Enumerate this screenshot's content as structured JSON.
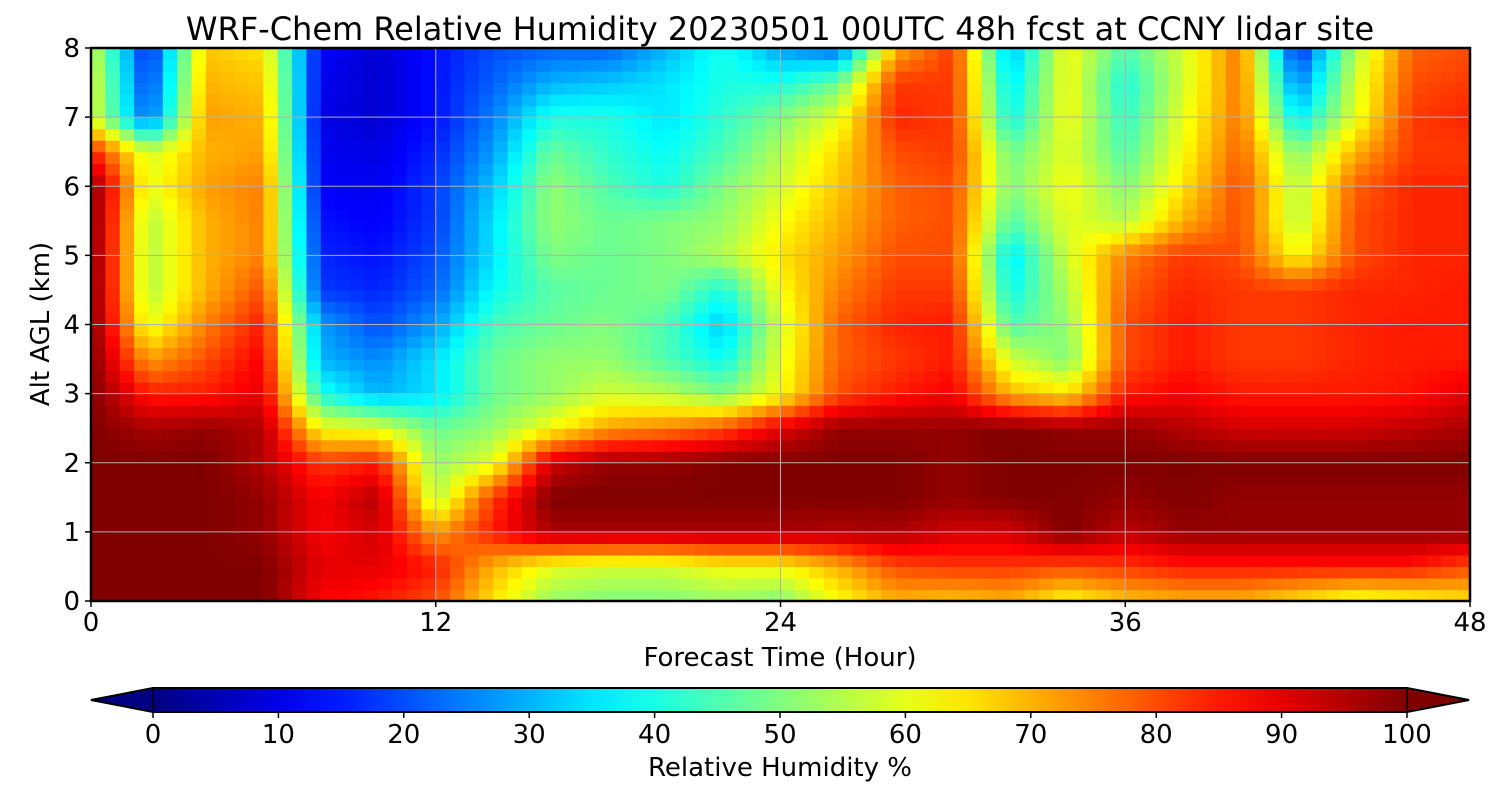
{
  "chart_data": {
    "type": "heatmap",
    "title": "WRF-Chem Relative Humidity 20230501 00UTC 48h fcst at CCNY lidar site",
    "xlabel": "Forecast Time (Hour)",
    "ylabel": "Alt AGL (km)",
    "xlim": [
      0,
      48
    ],
    "ylim": [
      0,
      8
    ],
    "x_ticks": [
      "0",
      "12",
      "24",
      "36",
      "48"
    ],
    "y_ticks": [
      "0",
      "1",
      "2",
      "3",
      "4",
      "5",
      "6",
      "7",
      "8"
    ],
    "grid": true,
    "colormap": "jet",
    "colorbar": {
      "label": "Relative Humidity %",
      "range": [
        0,
        100
      ],
      "ticks": [
        "0",
        "10",
        "20",
        "30",
        "40",
        "50",
        "60",
        "70",
        "80",
        "90",
        "100"
      ],
      "extend": "both",
      "orientation": "horizontal"
    },
    "x": [
      0,
      2,
      4,
      6,
      8,
      10,
      12,
      14,
      16,
      18,
      20,
      22,
      24,
      26,
      28,
      30,
      32,
      34,
      36,
      38,
      40,
      42,
      44,
      46,
      48
    ],
    "y": [
      0,
      0.5,
      1,
      1.5,
      2,
      2.5,
      3,
      3.5,
      4,
      4.5,
      5,
      5.5,
      6,
      6.5,
      7,
      7.5,
      8
    ],
    "z": [
      [
        100,
        100,
        100,
        100,
        88,
        85,
        80,
        65,
        52,
        50,
        50,
        52,
        50,
        62,
        70,
        68,
        70,
        62,
        68,
        70,
        70,
        65,
        60,
        62,
        65
      ],
      [
        100,
        100,
        100,
        100,
        90,
        90,
        85,
        70,
        60,
        58,
        58,
        62,
        62,
        70,
        80,
        82,
        82,
        80,
        82,
        85,
        85,
        85,
        85,
        85,
        80
      ],
      [
        100,
        100,
        100,
        98,
        88,
        92,
        72,
        85,
        96,
        96,
        96,
        96,
        96,
        95,
        96,
        92,
        92,
        100,
        94,
        98,
        98,
        98,
        98,
        98,
        98
      ],
      [
        100,
        100,
        100,
        98,
        88,
        95,
        55,
        82,
        100,
        100,
        100,
        100,
        100,
        100,
        100,
        98,
        100,
        100,
        98,
        100,
        98,
        98,
        98,
        98,
        98
      ],
      [
        100,
        100,
        100,
        95,
        82,
        85,
        52,
        60,
        92,
        98,
        98,
        100,
        100,
        100,
        100,
        98,
        100,
        100,
        100,
        100,
        100,
        100,
        100,
        100,
        100
      ],
      [
        100,
        96,
        98,
        95,
        62,
        60,
        48,
        52,
        62,
        72,
        75,
        80,
        90,
        98,
        98,
        98,
        100,
        98,
        98,
        95,
        92,
        92,
        92,
        94,
        96
      ],
      [
        100,
        85,
        85,
        90,
        40,
        30,
        35,
        48,
        52,
        58,
        56,
        50,
        62,
        80,
        85,
        88,
        70,
        65,
        85,
        88,
        85,
        85,
        85,
        86,
        90
      ],
      [
        100,
        72,
        80,
        88,
        30,
        26,
        35,
        48,
        52,
        52,
        45,
        38,
        60,
        78,
        82,
        85,
        58,
        50,
        80,
        85,
        82,
        82,
        84,
        85,
        85
      ],
      [
        100,
        60,
        75,
        85,
        28,
        20,
        28,
        44,
        48,
        50,
        45,
        32,
        58,
        78,
        84,
        85,
        45,
        52,
        80,
        85,
        82,
        82,
        84,
        85,
        85
      ],
      [
        100,
        55,
        70,
        80,
        18,
        16,
        22,
        38,
        46,
        48,
        50,
        40,
        62,
        75,
        82,
        82,
        38,
        55,
        78,
        84,
        82,
        82,
        84,
        84,
        85
      ],
      [
        100,
        55,
        70,
        75,
        16,
        14,
        20,
        35,
        50,
        48,
        50,
        55,
        65,
        72,
        80,
        80,
        35,
        58,
        75,
        82,
        80,
        62,
        80,
        84,
        84
      ],
      [
        100,
        55,
        70,
        75,
        14,
        12,
        18,
        35,
        52,
        48,
        50,
        52,
        62,
        70,
        78,
        80,
        45,
        60,
        55,
        70,
        80,
        55,
        80,
        84,
        84
      ],
      [
        100,
        60,
        72,
        75,
        12,
        11,
        18,
        32,
        52,
        45,
        40,
        50,
        58,
        68,
        78,
        80,
        50,
        62,
        50,
        65,
        80,
        55,
        78,
        84,
        84
      ],
      [
        85,
        58,
        70,
        72,
        11,
        10,
        16,
        28,
        48,
        42,
        38,
        45,
        55,
        66,
        80,
        82,
        48,
        60,
        45,
        62,
        78,
        50,
        70,
        82,
        82
      ],
      [
        60,
        22,
        72,
        70,
        10,
        8,
        14,
        25,
        40,
        40,
        35,
        42,
        50,
        60,
        84,
        82,
        38,
        62,
        42,
        60,
        76,
        35,
        60,
        82,
        84
      ],
      [
        60,
        18,
        70,
        68,
        11,
        8,
        14,
        22,
        30,
        32,
        35,
        40,
        40,
        48,
        82,
        82,
        35,
        62,
        40,
        58,
        76,
        25,
        58,
        80,
        82
      ],
      [
        58,
        15,
        68,
        65,
        12,
        8,
        14,
        20,
        22,
        22,
        30,
        40,
        28,
        22,
        70,
        82,
        30,
        62,
        45,
        58,
        76,
        15,
        55,
        78,
        80
      ]
    ]
  }
}
